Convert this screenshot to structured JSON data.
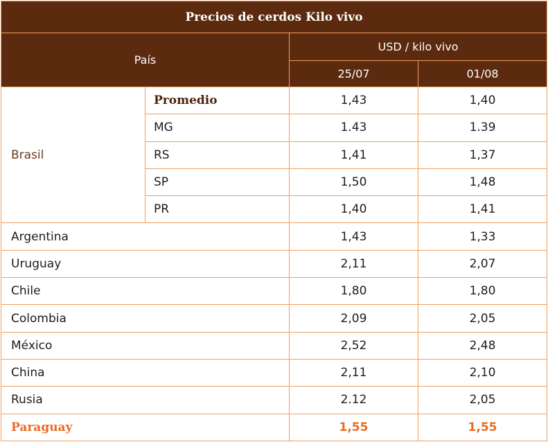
{
  "title": "Precios de cerdos Kilo vivo",
  "header": {
    "country_label": "País",
    "unit_label": "USD / kilo vivo",
    "dates": [
      "25/07",
      "01/08"
    ]
  },
  "brasil": {
    "name": "Brasil",
    "rows": [
      {
        "state": "Promedio",
        "v1": "1,43",
        "v2": "1,40"
      },
      {
        "state": "MG",
        "v1": "1.43",
        "v2": "1.39"
      },
      {
        "state": "RS",
        "v1": "1,41",
        "v2": "1,37"
      },
      {
        "state": "SP",
        "v1": "1,50",
        "v2": "1,48"
      },
      {
        "state": "PR",
        "v1": "1,40",
        "v2": "1,41"
      }
    ]
  },
  "countries": [
    {
      "name": "Argentina",
      "v1": "1,43",
      "v2": "1,33"
    },
    {
      "name": "Uruguay",
      "v1": "2,11",
      "v2": "2,07"
    },
    {
      "name": "Chile",
      "v1": "1,80",
      "v2": "1,80"
    },
    {
      "name": "Colombia",
      "v1": "2,09",
      "v2": "2,05"
    },
    {
      "name": "México",
      "v1": "2,52",
      "v2": "2,48"
    },
    {
      "name": "China",
      "v1": "2,11",
      "v2": "2,10"
    },
    {
      "name": "Rusia",
      "v1": "2.12",
      "v2": "2,05"
    }
  ],
  "paraguay": {
    "name": "Paraguay",
    "v1": "1,55",
    "v2": "1,55"
  },
  "colors": {
    "header_bg": "#5c2a0e",
    "border": "#f0a060",
    "highlight": "#ea6a22",
    "brasil_text": "#6b3a1f"
  }
}
